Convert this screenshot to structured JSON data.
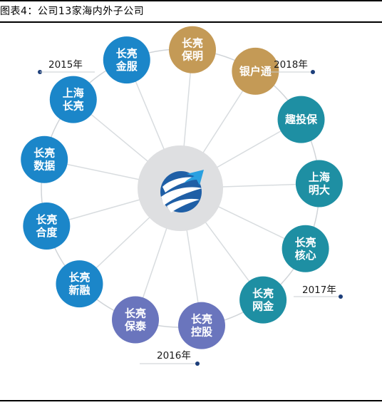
{
  "caption": "图表4：公司13家海内外子公司",
  "center": {
    "logo": "globe-logo-icon"
  },
  "colors": {
    "blue": "#1b86c9",
    "teal": "#1e8fa3",
    "gold": "#c49a56",
    "purple": "#6a75bd",
    "ring": "#d0d4d8",
    "spoke": "#d8dcdf",
    "hub": "#dedfe1",
    "dot": "#1c3e7a"
  },
  "nodes": [
    {
      "line1": "长亮",
      "line2": "保明",
      "color": "gold"
    },
    {
      "line1": "银户通",
      "line2": "",
      "color": "gold"
    },
    {
      "line1": "趣投保",
      "line2": "",
      "color": "teal"
    },
    {
      "line1": "上海",
      "line2": "明大",
      "color": "teal"
    },
    {
      "line1": "长亮",
      "line2": "核心",
      "color": "teal"
    },
    {
      "line1": "长亮",
      "line2": "网金",
      "color": "teal"
    },
    {
      "line1": "长亮",
      "line2": "控股",
      "color": "purple"
    },
    {
      "line1": "长亮",
      "line2": "保泰",
      "color": "purple"
    },
    {
      "line1": "长亮",
      "line2": "新融",
      "color": "blue"
    },
    {
      "line1": "长亮",
      "line2": "合度",
      "color": "blue"
    },
    {
      "line1": "长亮",
      "line2": "数据",
      "color": "blue"
    },
    {
      "line1": "上海",
      "line2": "长亮",
      "color": "blue"
    },
    {
      "line1": "长亮",
      "line2": "金服",
      "color": "blue"
    }
  ],
  "years": [
    "2015年",
    "2018年",
    "2017年",
    "2016年"
  ]
}
